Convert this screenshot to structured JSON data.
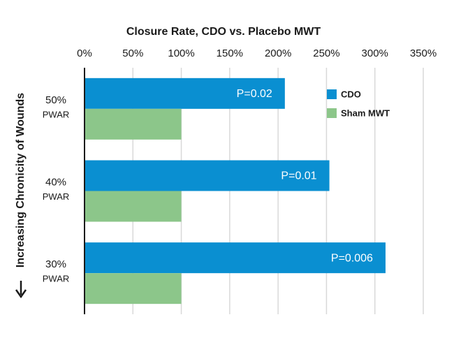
{
  "chart_data": {
    "type": "bar",
    "orientation": "horizontal",
    "title": "Closure Rate, CDO vs. Placebo MWT",
    "y_label": "Increasing Chronicity of Wounds",
    "categories": [
      [
        "50%",
        "PWAR"
      ],
      [
        "40%",
        "PWAR"
      ],
      [
        "30%",
        "PWAR"
      ]
    ],
    "series": [
      {
        "name": "CDO",
        "color": "#0a8fd1",
        "values": [
          207,
          253,
          311
        ],
        "annotations": [
          "P=0.02",
          "P=0.01",
          "P=0.006"
        ]
      },
      {
        "name": "Sham MWT",
        "color": "#8cc68a",
        "values": [
          100,
          100,
          100
        ]
      }
    ],
    "xlim": [
      0,
      350
    ],
    "xticks": [
      {
        "value": 0,
        "label": "0%"
      },
      {
        "value": 50,
        "label": "50%"
      },
      {
        "value": 100,
        "label": "100%"
      },
      {
        "value": 150,
        "label": "150%"
      },
      {
        "value": 200,
        "label": "200%"
      },
      {
        "value": 250,
        "label": "250%"
      },
      {
        "value": 300,
        "label": "300%"
      },
      {
        "value": 350,
        "label": "350%"
      }
    ],
    "grid": true,
    "legend": "upper right"
  }
}
